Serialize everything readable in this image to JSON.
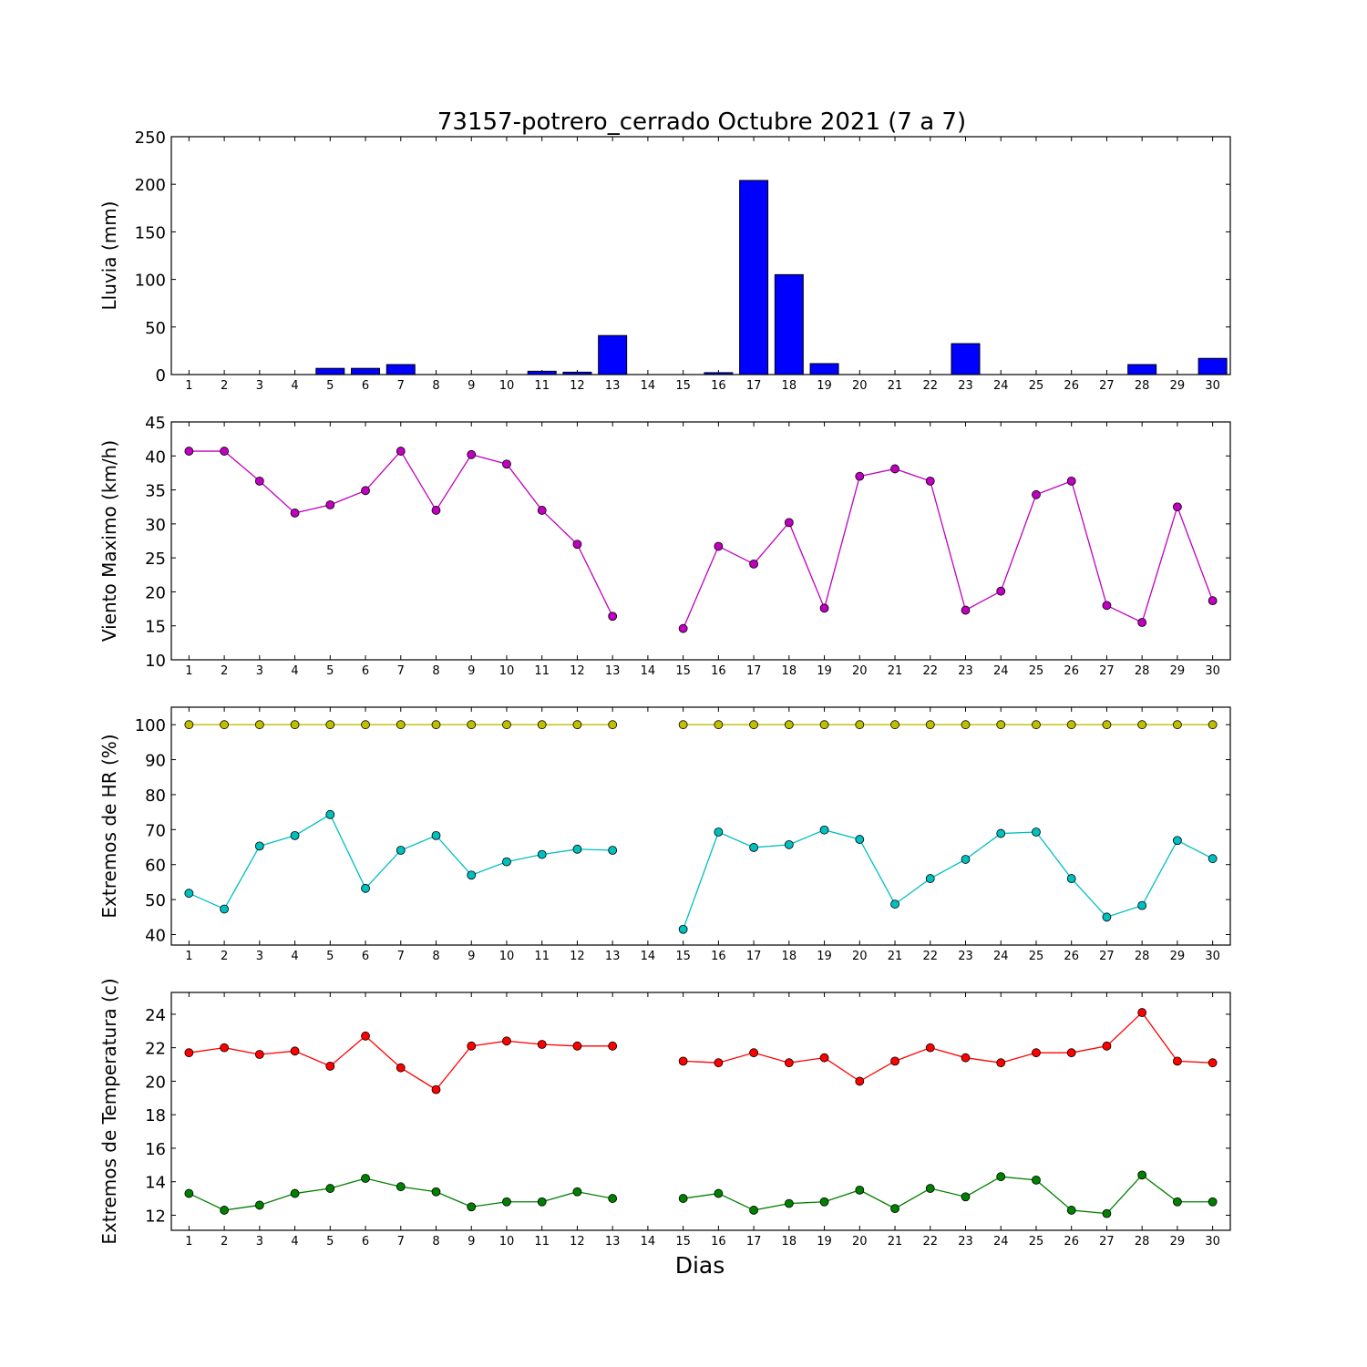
{
  "title": "73157-potrero_cerrado Octubre 2021  (7 a 7)",
  "xlabel": "Dias",
  "colors": {
    "rain": "#0000ff",
    "wind": "#bf00bf",
    "hr_max": "#bfbf00",
    "hr_min": "#00bfbf",
    "temp_max": "#ff0000",
    "temp_min": "#008000"
  },
  "chart_data": [
    {
      "type": "bar",
      "ylabel": "Lluvia (mm)",
      "ylim": [
        0,
        250
      ],
      "yticks": [
        0,
        50,
        100,
        150,
        200,
        250
      ],
      "x": [
        1,
        2,
        3,
        4,
        5,
        6,
        7,
        8,
        9,
        10,
        11,
        12,
        13,
        14,
        15,
        16,
        17,
        18,
        19,
        20,
        21,
        22,
        23,
        24,
        25,
        26,
        27,
        28,
        29,
        30
      ],
      "values": [
        0,
        0,
        0,
        0,
        6.5,
        6.5,
        10.5,
        0,
        0,
        0,
        3.5,
        2.5,
        41,
        0,
        0,
        2,
        204,
        105,
        11.5,
        0,
        0,
        0,
        32.5,
        0,
        0,
        0,
        0,
        10.5,
        0,
        17
      ],
      "grid": false
    },
    {
      "type": "line",
      "ylabel": "Viento Maximo (km/h)",
      "ylim": [
        10,
        45
      ],
      "yticks": [
        10,
        15,
        20,
        25,
        30,
        35,
        40,
        45
      ],
      "x": [
        1,
        2,
        3,
        4,
        5,
        6,
        7,
        8,
        9,
        10,
        11,
        12,
        13,
        14,
        15,
        16,
        17,
        18,
        19,
        20,
        21,
        22,
        23,
        24,
        25,
        26,
        27,
        28,
        29,
        30
      ],
      "series": [
        {
          "values": [
            40.7,
            40.7,
            36.3,
            31.6,
            32.8,
            34.9,
            40.7,
            32.0,
            40.2,
            38.8,
            32.0,
            27.0,
            16.4,
            null,
            14.6,
            26.7,
            24.1,
            30.2,
            17.6,
            37.0,
            38.1,
            36.3,
            17.3,
            20.1,
            34.3,
            36.3,
            18.0,
            15.5,
            32.5,
            18.7
          ]
        }
      ],
      "grid": false
    },
    {
      "type": "line",
      "ylabel": "Extremos de HR (%)",
      "ylim": [
        37,
        105
      ],
      "yticks": [
        40,
        50,
        60,
        70,
        80,
        90,
        100
      ],
      "x": [
        1,
        2,
        3,
        4,
        5,
        6,
        7,
        8,
        9,
        10,
        11,
        12,
        13,
        14,
        15,
        16,
        17,
        18,
        19,
        20,
        21,
        22,
        23,
        24,
        25,
        26,
        27,
        28,
        29,
        30
      ],
      "series": [
        {
          "values": [
            100,
            100,
            100,
            100,
            100,
            100,
            100,
            100,
            100,
            100,
            100,
            100,
            100,
            null,
            100,
            100,
            100,
            100,
            100,
            100,
            100,
            100,
            100,
            100,
            100,
            100,
            100,
            100,
            100,
            100
          ]
        },
        {
          "values": [
            51.8,
            47.3,
            65.3,
            68.3,
            74.3,
            53.2,
            64.1,
            68.3,
            57.0,
            60.8,
            62.9,
            64.4,
            64.1,
            null,
            41.5,
            69.3,
            64.9,
            65.7,
            69.9,
            67.2,
            48.7,
            56.0,
            61.5,
            68.9,
            69.3,
            56.0,
            45.0,
            48.3,
            66.9,
            61.7
          ]
        }
      ],
      "grid": false
    },
    {
      "type": "line",
      "ylabel": "Extremos de Temperatura (c)",
      "ylim": [
        11.1,
        25.3
      ],
      "yticks": [
        12,
        14,
        16,
        18,
        20,
        22,
        24
      ],
      "x": [
        1,
        2,
        3,
        4,
        5,
        6,
        7,
        8,
        9,
        10,
        11,
        12,
        13,
        14,
        15,
        16,
        17,
        18,
        19,
        20,
        21,
        22,
        23,
        24,
        25,
        26,
        27,
        28,
        29,
        30
      ],
      "series": [
        {
          "values": [
            21.7,
            22.0,
            21.6,
            21.8,
            20.9,
            22.7,
            20.8,
            19.5,
            22.1,
            22.4,
            22.2,
            22.1,
            22.1,
            null,
            21.2,
            21.1,
            21.7,
            21.1,
            21.4,
            20.0,
            21.2,
            22.0,
            21.4,
            21.1,
            21.7,
            21.7,
            22.1,
            24.1,
            21.2,
            21.1
          ]
        },
        {
          "values": [
            13.3,
            12.3,
            12.6,
            13.3,
            13.6,
            14.2,
            13.7,
            13.4,
            12.5,
            12.8,
            12.8,
            13.4,
            13.0,
            null,
            13.0,
            13.3,
            12.3,
            12.7,
            12.8,
            13.5,
            12.4,
            13.6,
            13.1,
            14.3,
            14.1,
            12.3,
            12.1,
            14.4,
            12.8,
            12.8
          ]
        }
      ],
      "grid": false
    }
  ]
}
